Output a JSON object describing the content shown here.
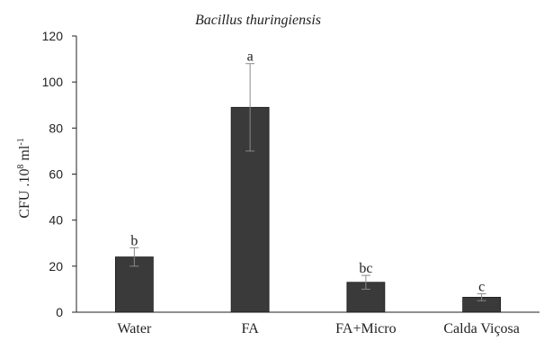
{
  "chart_data": {
    "type": "bar",
    "title": "Bacillus thuringiensis",
    "ylabel": {
      "text": "CFU .10",
      "exp": "8",
      "unit": " ml",
      "unit_exp": "-1"
    },
    "categories": [
      "Water",
      "FA",
      "FA+Micro",
      "Calda Viçosa"
    ],
    "values": [
      24,
      89,
      13,
      6.5
    ],
    "errors": [
      4,
      19,
      3,
      1.5
    ],
    "significance": [
      "b",
      "a",
      "bc",
      "c"
    ],
    "ylim": [
      0,
      120
    ],
    "yticks": [
      "0",
      "20",
      "40",
      "60",
      "80",
      "100",
      "120"
    ],
    "grid": false,
    "bar_color": "#3a3a3a",
    "error_color": "#8a8a8a"
  }
}
